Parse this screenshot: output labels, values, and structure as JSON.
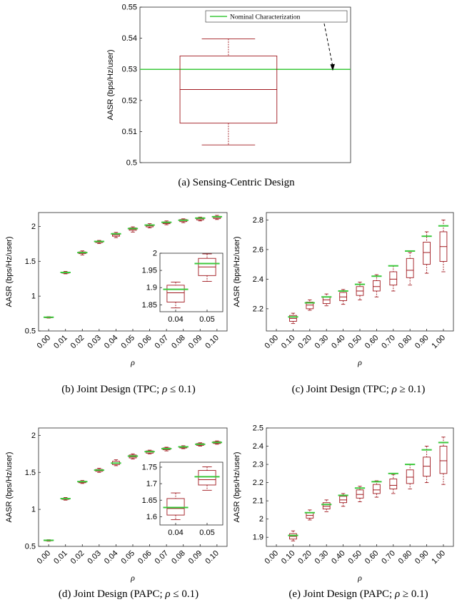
{
  "chart_data": [
    {
      "id": "a",
      "type": "box",
      "caption": "(a) Sensing-Centric Design",
      "ylabel": "AASR (bps/Hz/user)",
      "ylim": [
        0.5,
        0.55
      ],
      "yticks": [
        "0.5",
        "0.51",
        "0.52",
        "0.53",
        "0.54",
        "0.55"
      ],
      "box": {
        "min": 0.5057,
        "q1": 0.5127,
        "median": 0.5235,
        "q3": 0.5343,
        "max": 0.5398
      },
      "nominal": 0.53,
      "legend": "Nominal Characterization",
      "legend_placement": "top-right",
      "colors": {
        "box": "#a0181e",
        "nominal": "#3cc83c"
      }
    },
    {
      "id": "b",
      "type": "box",
      "caption": "(b) Joint Design (TPC; ρ ≤ 0.1)",
      "ylabel": "AASR (bps/Hz/user)",
      "xlabel": "ρ",
      "ylim": [
        0.5,
        2.2
      ],
      "yticks": [
        "0.5",
        "1",
        "1.5",
        "2"
      ],
      "categories": [
        "0.00",
        "0.01",
        "0.02",
        "0.03",
        "0.04",
        "0.05",
        "0.06",
        "0.07",
        "0.08",
        "0.09",
        "0.10"
      ],
      "boxes": [
        {
          "min": 0.685,
          "q1": 0.69,
          "median": 0.695,
          "q3": 0.7,
          "max": 0.705,
          "nominal": 0.697
        },
        {
          "min": 1.32,
          "q1": 1.33,
          "median": 1.34,
          "q3": 1.345,
          "max": 1.355,
          "nominal": 1.34
        },
        {
          "min": 1.59,
          "q1": 1.61,
          "median": 1.62,
          "q3": 1.635,
          "max": 1.65,
          "nominal": 1.625
        },
        {
          "min": 1.755,
          "q1": 1.77,
          "median": 1.78,
          "q3": 1.79,
          "max": 1.8,
          "nominal": 1.785
        },
        {
          "min": 1.84,
          "q1": 1.86,
          "median": 1.88,
          "q3": 1.9,
          "max": 1.915,
          "nominal": 1.895
        },
        {
          "min": 1.92,
          "q1": 1.945,
          "median": 1.96,
          "q3": 1.98,
          "max": 1.995,
          "nominal": 1.97
        },
        {
          "min": 1.98,
          "q1": 1.995,
          "median": 2.01,
          "q3": 2.025,
          "max": 2.04,
          "nominal": 2.02
        },
        {
          "min": 2.025,
          "q1": 2.04,
          "median": 2.05,
          "q3": 2.065,
          "max": 2.08,
          "nominal": 2.06
        },
        {
          "min": 2.055,
          "q1": 2.07,
          "median": 2.085,
          "q3": 2.1,
          "max": 2.11,
          "nominal": 2.09
        },
        {
          "min": 2.08,
          "q1": 2.095,
          "median": 2.11,
          "q3": 2.125,
          "max": 2.135,
          "nominal": 2.12
        },
        {
          "min": 2.1,
          "q1": 2.115,
          "median": 2.13,
          "q3": 2.145,
          "max": 2.16,
          "nominal": 2.14
        }
      ],
      "inset": {
        "categories": [
          "0.04",
          "0.05"
        ],
        "ylim": [
          1.83,
          2.0
        ],
        "yticks": [
          "1.85",
          "1.9",
          "1.95",
          "2"
        ],
        "boxes": [
          {
            "min": 1.841,
            "q1": 1.858,
            "median": 1.885,
            "q3": 1.907,
            "max": 1.916,
            "nominal": 1.895
          },
          {
            "min": 1.918,
            "q1": 1.935,
            "median": 1.96,
            "q3": 1.985,
            "max": 1.998,
            "nominal": 1.97
          }
        ]
      }
    },
    {
      "id": "c",
      "type": "box",
      "caption": "(c) Joint Design (TPC; ρ ≥ 0.1)",
      "ylabel": "AASR (bps/Hz/user)",
      "xlabel": "ρ",
      "ylim": [
        2.05,
        2.85
      ],
      "yticks": [
        "2.2",
        "2.4",
        "2.6",
        "2.8"
      ],
      "categories": [
        "0.00",
        "0.10",
        "0.20",
        "0.30",
        "0.40",
        "0.50",
        "0.60",
        "0.70",
        "0.80",
        "0.90",
        "1.00"
      ],
      "boxes": [
        null,
        {
          "min": 2.1,
          "q1": 2.115,
          "median": 2.135,
          "q3": 2.155,
          "max": 2.17,
          "nominal": 2.145
        },
        {
          "min": 2.19,
          "q1": 2.2,
          "median": 2.225,
          "q3": 2.245,
          "max": 2.26,
          "nominal": 2.24
        },
        {
          "min": 2.22,
          "q1": 2.235,
          "median": 2.26,
          "q3": 2.28,
          "max": 2.3,
          "nominal": 2.28
        },
        {
          "min": 2.23,
          "q1": 2.255,
          "median": 2.28,
          "q3": 2.31,
          "max": 2.33,
          "nominal": 2.32
        },
        {
          "min": 2.26,
          "q1": 2.29,
          "median": 2.32,
          "q3": 2.35,
          "max": 2.38,
          "nominal": 2.365
        },
        {
          "min": 2.28,
          "q1": 2.32,
          "median": 2.35,
          "q3": 2.39,
          "max": 2.43,
          "nominal": 2.42
        },
        {
          "min": 2.32,
          "q1": 2.36,
          "median": 2.4,
          "q3": 2.45,
          "max": 2.49,
          "nominal": 2.49
        },
        {
          "min": 2.36,
          "q1": 2.41,
          "median": 2.46,
          "q3": 2.54,
          "max": 2.58,
          "nominal": 2.59
        },
        {
          "min": 2.44,
          "q1": 2.5,
          "median": 2.58,
          "q3": 2.65,
          "max": 2.72,
          "nominal": 2.69
        },
        {
          "min": 2.45,
          "q1": 2.52,
          "median": 2.62,
          "q3": 2.72,
          "max": 2.8,
          "nominal": 2.76
        }
      ]
    },
    {
      "id": "d",
      "type": "box",
      "caption": "(d) Joint Design (PAPC; ρ ≤ 0.1)",
      "ylabel": "AASR (bps/Hz/user)",
      "xlabel": "ρ",
      "ylim": [
        0.5,
        2.1
      ],
      "yticks": [
        "0.5",
        "1",
        "1.5",
        "2"
      ],
      "categories": [
        "0.00",
        "0.01",
        "0.02",
        "0.03",
        "0.04",
        "0.05",
        "0.06",
        "0.07",
        "0.08",
        "0.09",
        "0.10"
      ],
      "boxes": [
        {
          "min": 0.57,
          "q1": 0.575,
          "median": 0.58,
          "q3": 0.585,
          "max": 0.59,
          "nominal": 0.582
        },
        {
          "min": 1.125,
          "q1": 1.135,
          "median": 1.145,
          "q3": 1.15,
          "max": 1.16,
          "nominal": 1.145
        },
        {
          "min": 1.35,
          "q1": 1.36,
          "median": 1.37,
          "q3": 1.38,
          "max": 1.39,
          "nominal": 1.375
        },
        {
          "min": 1.5,
          "q1": 1.515,
          "median": 1.525,
          "q3": 1.54,
          "max": 1.555,
          "nominal": 1.53
        },
        {
          "min": 1.59,
          "q1": 1.605,
          "median": 1.625,
          "q3": 1.65,
          "max": 1.67,
          "nominal": 1.625
        },
        {
          "min": 1.68,
          "q1": 1.695,
          "median": 1.71,
          "q3": 1.735,
          "max": 1.75,
          "nominal": 1.72
        },
        {
          "min": 1.75,
          "q1": 1.76,
          "median": 1.775,
          "q3": 1.79,
          "max": 1.8,
          "nominal": 1.78
        },
        {
          "min": 1.79,
          "q1": 1.805,
          "median": 1.815,
          "q3": 1.83,
          "max": 1.84,
          "nominal": 1.82
        },
        {
          "min": 1.82,
          "q1": 1.83,
          "median": 1.84,
          "q3": 1.85,
          "max": 1.86,
          "nominal": 1.845
        },
        {
          "min": 1.855,
          "q1": 1.865,
          "median": 1.875,
          "q3": 1.89,
          "max": 1.9,
          "nominal": 1.88
        },
        {
          "min": 1.88,
          "q1": 1.89,
          "median": 1.9,
          "q3": 1.915,
          "max": 1.925,
          "nominal": 1.905
        }
      ],
      "inset": {
        "categories": [
          "0.04",
          "0.05"
        ],
        "ylim": [
          1.575,
          1.765
        ],
        "yticks": [
          "1.6",
          "1.65",
          "1.7",
          "1.75"
        ],
        "boxes": [
          {
            "min": 1.591,
            "q1": 1.605,
            "median": 1.625,
            "q3": 1.655,
            "max": 1.672,
            "nominal": 1.628
          },
          {
            "min": 1.68,
            "q1": 1.696,
            "median": 1.712,
            "q3": 1.74,
            "max": 1.751,
            "nominal": 1.721
          }
        ]
      }
    },
    {
      "id": "e",
      "type": "box",
      "caption": "(e) Joint Design (PAPC; ρ ≥ 0.1)",
      "ylabel": "AASR (bps/Hz/user)",
      "xlabel": "ρ",
      "ylim": [
        1.85,
        2.5
      ],
      "yticks": [
        "1.9",
        "2",
        "2.1",
        "2.2",
        "2.3",
        "2.4",
        "2.5"
      ],
      "categories": [
        "0.00",
        "0.10",
        "0.20",
        "0.30",
        "0.40",
        "0.50",
        "0.60",
        "0.70",
        "0.80",
        "0.90",
        "1.00"
      ],
      "boxes": [
        null,
        {
          "min": 1.88,
          "q1": 1.89,
          "median": 1.905,
          "q3": 1.92,
          "max": 1.935,
          "nominal": 1.91
        },
        {
          "min": 1.995,
          "q1": 2.005,
          "median": 2.02,
          "q3": 2.035,
          "max": 2.05,
          "nominal": 2.035
        },
        {
          "min": 2.04,
          "q1": 2.055,
          "median": 2.07,
          "q3": 2.09,
          "max": 2.105,
          "nominal": 2.08
        },
        {
          "min": 2.07,
          "q1": 2.09,
          "median": 2.105,
          "q3": 2.125,
          "max": 2.14,
          "nominal": 2.13
        },
        {
          "min": 2.095,
          "q1": 2.115,
          "median": 2.135,
          "q3": 2.16,
          "max": 2.18,
          "nominal": 2.17
        },
        {
          "min": 2.12,
          "q1": 2.14,
          "median": 2.16,
          "q3": 2.19,
          "max": 2.21,
          "nominal": 2.205
        },
        {
          "min": 2.14,
          "q1": 2.165,
          "median": 2.185,
          "q3": 2.22,
          "max": 2.245,
          "nominal": 2.25
        },
        {
          "min": 2.165,
          "q1": 2.195,
          "median": 2.23,
          "q3": 2.27,
          "max": 2.3,
          "nominal": 2.3
        },
        {
          "min": 2.2,
          "q1": 2.235,
          "median": 2.29,
          "q3": 2.34,
          "max": 2.4,
          "nominal": 2.38
        },
        {
          "min": 2.19,
          "q1": 2.25,
          "median": 2.32,
          "q3": 2.4,
          "max": 2.45,
          "nominal": 2.42
        }
      ]
    }
  ]
}
